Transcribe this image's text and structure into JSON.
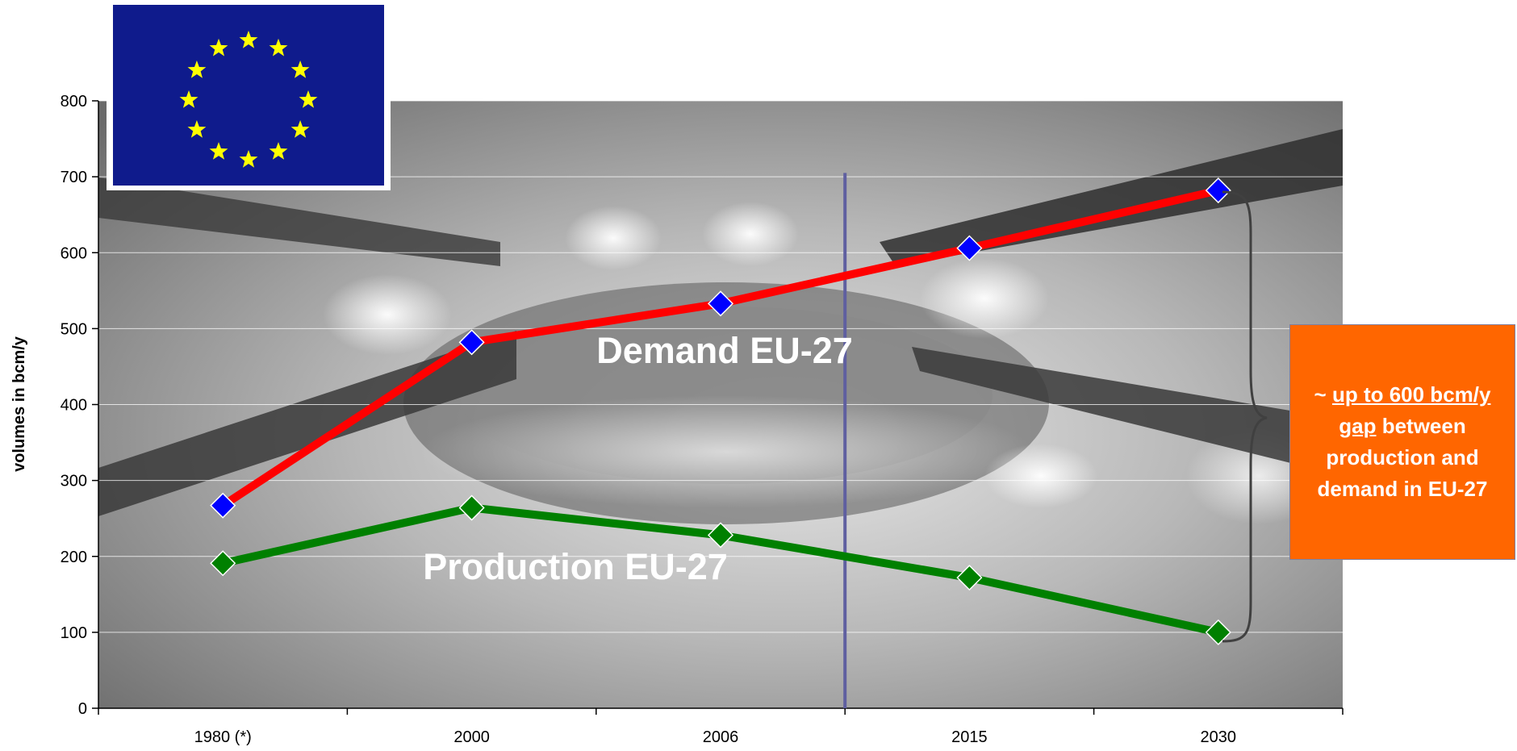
{
  "chart_data": {
    "type": "line",
    "categories": [
      "1980 (*)",
      "2000",
      "2006",
      "2015",
      "2030"
    ],
    "series": [
      {
        "name": "Demand EU-27",
        "values": [
          267,
          482,
          533,
          606,
          682
        ],
        "color": "#ff0000",
        "marker_color": "#0000ff"
      },
      {
        "name": "Production EU-27",
        "values": [
          191,
          264,
          228,
          172,
          100
        ],
        "color": "#008000",
        "marker_color": "#008000"
      }
    ],
    "ylabel": "volumes in bcm/y",
    "ylim": [
      0,
      800
    ],
    "yticks": [
      0,
      100,
      200,
      300,
      400,
      500,
      600,
      700,
      800
    ],
    "grid": true,
    "divider_between": [
      "2006",
      "2015"
    ],
    "background": "gas-burner-flame-photo"
  },
  "callout": {
    "prefix": "~ ",
    "emph1": "up to 600 bcm/y",
    "emph2": "gap",
    "rest": " between production and demand in EU-27",
    "bg_color": "#ff6600"
  },
  "flag": {
    "icon": "eu-flag-icon",
    "bg_color": "#0f1b8c",
    "star_color": "#ffff00"
  }
}
